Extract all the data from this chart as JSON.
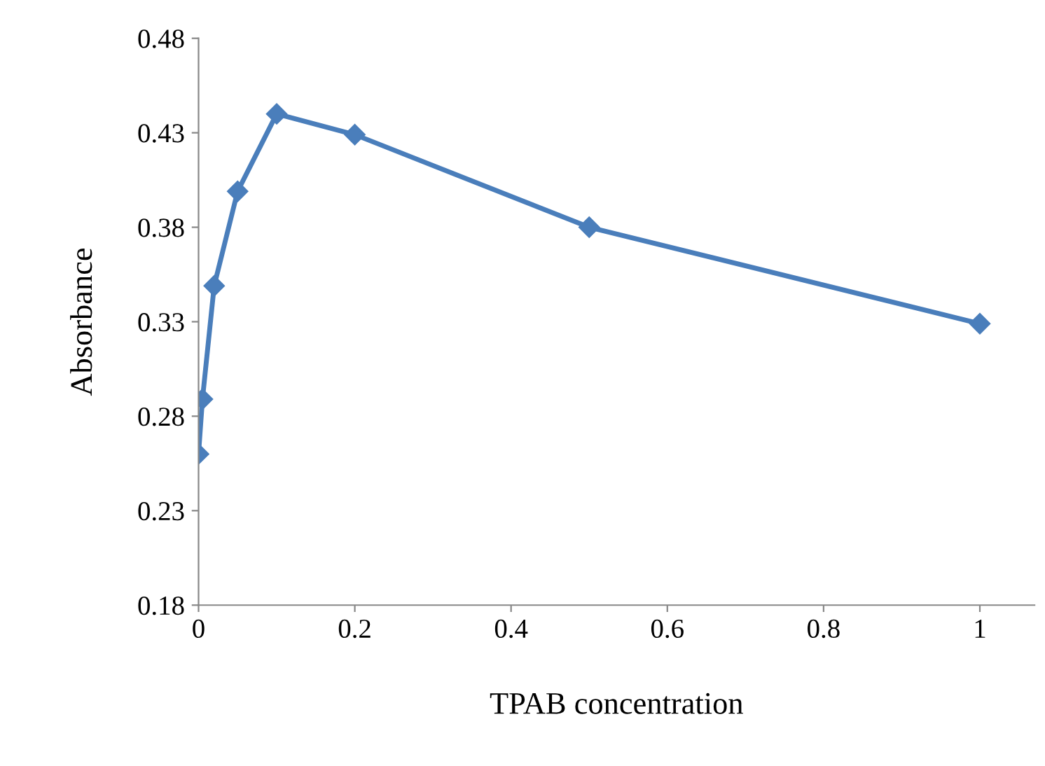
{
  "chart_data": {
    "type": "line",
    "xlabel": "TPAB concentration",
    "ylabel": "Absorbance",
    "x": [
      0,
      0.005,
      0.02,
      0.05,
      0.1,
      0.2,
      0.5,
      1
    ],
    "series": [
      {
        "color": "#4a7ebb",
        "values": [
          0.26,
          0.289,
          0.349,
          0.399,
          0.44,
          0.429,
          0.38,
          0.329
        ]
      }
    ],
    "xlim": [
      0,
      1.07
    ],
    "xticks": [
      0,
      0.2,
      0.4,
      0.6,
      0.8,
      1
    ],
    "ylim": [
      0.18,
      0.48
    ],
    "yticks": [
      0.18,
      0.23,
      0.28,
      0.33,
      0.38,
      0.43,
      0.48
    ],
    "marker": "diamond",
    "grid": false,
    "legend": false
  }
}
